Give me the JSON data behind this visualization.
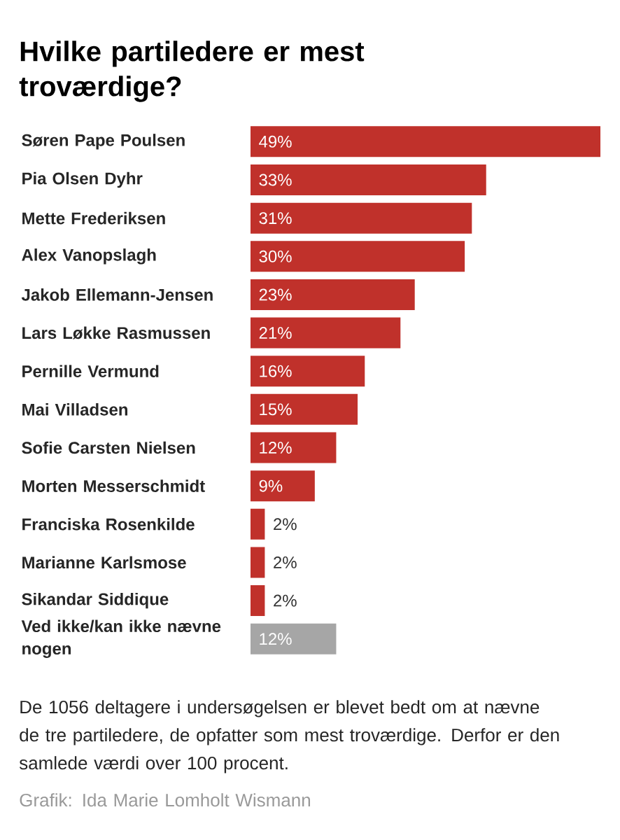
{
  "chart_data": {
    "type": "bar",
    "orientation": "horizontal",
    "title": "Hvilke partiledere er mest troværdige?",
    "categories": [
      "Søren Pape Poulsen",
      "Pia Olsen Dyhr",
      "Mette Frederiksen",
      "Alex Vanopslagh",
      "Jakob Ellemann-Jensen",
      "Lars Løkke Rasmussen",
      "Pernille Vermund",
      "Mai Villadsen",
      "Sofie Carsten Nielsen",
      "Morten Messerschmidt",
      "Franciska Rosenkilde",
      "Marianne Karlsmose",
      "Sikandar Siddique",
      "Ved ikke/kan ikke nævne nogen"
    ],
    "values": [
      49,
      33,
      31,
      30,
      23,
      21,
      16,
      15,
      12,
      9,
      2,
      2,
      2,
      12
    ],
    "value_labels": [
      "49%",
      "33%",
      "31%",
      "30%",
      "23%",
      "21%",
      "16%",
      "15%",
      "12%",
      "9%",
      "2%",
      "2%",
      "2%",
      "12%"
    ],
    "colors": [
      "#c0312b",
      "#c0312b",
      "#c0312b",
      "#c0312b",
      "#c0312b",
      "#c0312b",
      "#c0312b",
      "#c0312b",
      "#c0312b",
      "#c0312b",
      "#c0312b",
      "#c0312b",
      "#c0312b",
      "#a6a6a6"
    ],
    "xlim": [
      0,
      49
    ],
    "tick_labels": "y",
    "annotations": [
      "De 1056 deltagere i undersøgelsen er blevet bedt om at nævne de tre partiledere, de opfatter som mest troværdige. Derfor er den samlede værdi over 100 procent.",
      "Grafik: Ida Marie Lomholt Wismann"
    ]
  }
}
